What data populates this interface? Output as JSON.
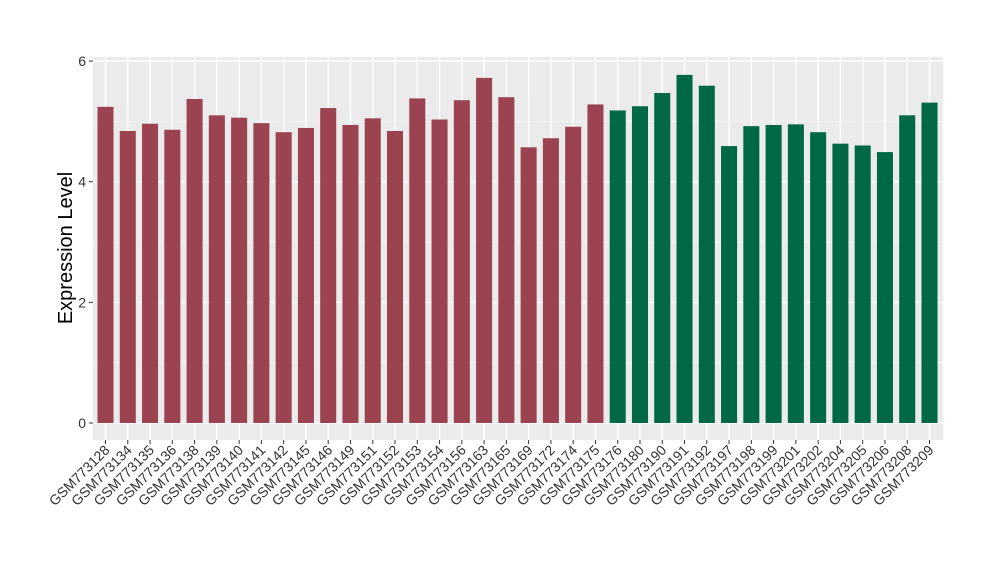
{
  "chart_data": {
    "type": "bar",
    "title": "",
    "xlabel": "",
    "ylabel": "Expression Level",
    "ylim": [
      0,
      6
    ],
    "yticks": [
      0,
      2,
      4,
      6
    ],
    "grid": true,
    "panel_background": "#EBEBEB",
    "categories": [
      "GSM773128",
      "GSM773134",
      "GSM773135",
      "GSM773136",
      "GSM773138",
      "GSM773139",
      "GSM773140",
      "GSM773141",
      "GSM773142",
      "GSM773145",
      "GSM773146",
      "GSM773149",
      "GSM773151",
      "GSM773152",
      "GSM773153",
      "GSM773154",
      "GSM773156",
      "GSM773163",
      "GSM773165",
      "GSM773169",
      "GSM773172",
      "GSM773174",
      "GSM773175",
      "GSM773176",
      "GSM773180",
      "GSM773190",
      "GSM773191",
      "GSM773192",
      "GSM773197",
      "GSM773198",
      "GSM773199",
      "GSM773201",
      "GSM773202",
      "GSM773204",
      "GSM773205",
      "GSM773206",
      "GSM773208",
      "GSM773209"
    ],
    "values": [
      5.24,
      4.84,
      4.96,
      4.86,
      5.37,
      5.1,
      5.06,
      4.97,
      4.82,
      4.89,
      5.22,
      4.94,
      5.05,
      4.84,
      5.38,
      5.03,
      5.35,
      5.72,
      5.4,
      4.57,
      4.72,
      4.91,
      5.28,
      5.18,
      5.25,
      5.47,
      5.77,
      5.59,
      4.59,
      4.92,
      4.94,
      4.95,
      4.82,
      4.63,
      4.6,
      4.49,
      5.1,
      5.31
    ],
    "bar_colors": [
      "#9B4350",
      "#9B4350",
      "#9B4350",
      "#9B4350",
      "#9B4350",
      "#9B4350",
      "#9B4350",
      "#9B4350",
      "#9B4350",
      "#9B4350",
      "#9B4350",
      "#9B4350",
      "#9B4350",
      "#9B4350",
      "#9B4350",
      "#9B4350",
      "#9B4350",
      "#9B4350",
      "#9B4350",
      "#9B4350",
      "#9B4350",
      "#9B4350",
      "#9B4350",
      "#006845",
      "#006845",
      "#006845",
      "#006845",
      "#006845",
      "#006845",
      "#006845",
      "#006845",
      "#006845",
      "#006845",
      "#006845",
      "#006845",
      "#006845",
      "#006845",
      "#006845"
    ]
  }
}
